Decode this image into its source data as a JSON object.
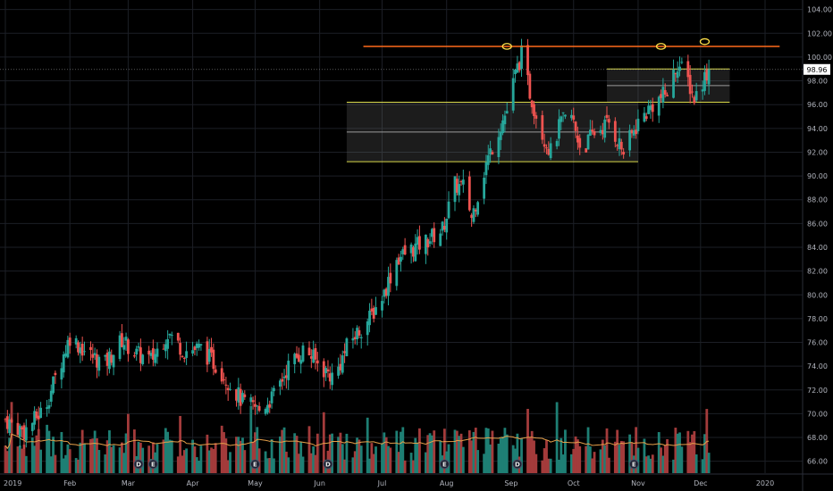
{
  "chart_data": {
    "type": "candlestick",
    "title": "",
    "xlabel": "",
    "ylabel": "",
    "ylim": [
      65,
      104.5
    ],
    "grid": true,
    "x_ticks": [
      "2019",
      "Feb",
      "Mar",
      "Apr",
      "May",
      "Jun",
      "Jul",
      "Aug",
      "Sep",
      "Oct",
      "Nov",
      "Dec",
      "2020"
    ],
    "y_ticks": [
      "66.00",
      "68.00",
      "70.00",
      "72.00",
      "74.00",
      "76.00",
      "78.00",
      "80.00",
      "82.00",
      "84.00",
      "86.00",
      "88.00",
      "90.00",
      "92.00",
      "94.00",
      "96.00",
      "98.00",
      "100.00",
      "102.00",
      "104.00"
    ],
    "last_price": "98.96",
    "close_path": [
      [
        "2019-01-01",
        69.5
      ],
      [
        "2019-01-10",
        68.5
      ],
      [
        "2019-01-20",
        70.5
      ],
      [
        "2019-01-26",
        73.5
      ],
      [
        "2019-02-01",
        76.5
      ],
      [
        "2019-02-10",
        75.0
      ],
      [
        "2019-02-18",
        74.2
      ],
      [
        "2019-02-26",
        76.2
      ],
      [
        "2019-03-05",
        75.0
      ],
      [
        "2019-03-12",
        74.5
      ],
      [
        "2019-03-20",
        76.8
      ],
      [
        "2019-03-28",
        75.3
      ],
      [
        "2019-04-05",
        75.5
      ],
      [
        "2019-04-15",
        73.5
      ],
      [
        "2019-04-25",
        71.0
      ],
      [
        "2019-05-03",
        70.3
      ],
      [
        "2019-05-10",
        71.5
      ],
      [
        "2019-05-17",
        74.0
      ],
      [
        "2019-05-25",
        75.5
      ],
      [
        "2019-06-01",
        74.0
      ],
      [
        "2019-06-08",
        73.0
      ],
      [
        "2019-06-15",
        76.0
      ],
      [
        "2019-06-25",
        78.0
      ],
      [
        "2019-07-02",
        80.2
      ],
      [
        "2019-07-08",
        83.0
      ],
      [
        "2019-07-15",
        83.8
      ],
      [
        "2019-07-22",
        84.5
      ],
      [
        "2019-07-30",
        85.5
      ],
      [
        "2019-08-05",
        89.2
      ],
      [
        "2019-08-10",
        89.0
      ],
      [
        "2019-08-13",
        86.5
      ],
      [
        "2019-08-20",
        91.0
      ],
      [
        "2019-08-25",
        93.5
      ],
      [
        "2019-08-30",
        95.5
      ],
      [
        "2019-09-03",
        98.5
      ],
      [
        "2019-09-06",
        100.2
      ],
      [
        "2019-09-10",
        97.0
      ],
      [
        "2019-09-15",
        94.0
      ],
      [
        "2019-09-20",
        92.0
      ],
      [
        "2019-09-25",
        94.5
      ],
      [
        "2019-09-30",
        95.0
      ],
      [
        "2019-10-05",
        92.0
      ],
      [
        "2019-10-10",
        93.5
      ],
      [
        "2019-10-18",
        94.5
      ],
      [
        "2019-10-25",
        92.0
      ],
      [
        "2019-11-01",
        94.5
      ],
      [
        "2019-11-08",
        96.0
      ],
      [
        "2019-11-15",
        97.0
      ],
      [
        "2019-11-20",
        99.5
      ],
      [
        "2019-11-25",
        98.0
      ],
      [
        "2019-11-28",
        96.5
      ],
      [
        "2019-12-02",
        98.0
      ],
      [
        "2019-12-05",
        98.96
      ]
    ],
    "events": [
      {
        "date": "2019-03-06",
        "label": "D"
      },
      {
        "date": "2019-03-13",
        "label": "E"
      },
      {
        "date": "2019-05-01",
        "label": "E"
      },
      {
        "date": "2019-06-05",
        "label": "D"
      },
      {
        "date": "2019-07-31",
        "label": "E"
      },
      {
        "date": "2019-09-04",
        "label": "D"
      },
      {
        "date": "2019-10-30",
        "label": "E"
      }
    ],
    "zones": [
      {
        "x": [
          "2019-06-14",
          "2019-11-01"
        ],
        "y": [
          91.2,
          96.2
        ],
        "mid": 93.7
      },
      {
        "x": [
          "2019-10-17",
          "2019-12-15"
        ],
        "y": [
          96.2,
          99.0
        ],
        "mid": 97.6
      }
    ],
    "resistance": {
      "x": [
        "2019-06-22",
        "2020-01-08"
      ],
      "y": 100.9
    },
    "highlights": [
      {
        "date": "2019-08-30",
        "y": 100.9
      },
      {
        "date": "2019-11-12",
        "y": 100.9
      },
      {
        "date": "2019-12-03",
        "y": 101.3
      }
    ]
  },
  "colors": {
    "up": "#26a69a",
    "down": "#ef5350",
    "vol_up": "#1e7f74",
    "vol_down": "#a33b3b",
    "grid": "#1c1f26",
    "zone_line": "#d8d84a",
    "resistance": "#ff6a1a",
    "highlight": "#ffe14a",
    "vol_ma": "#e6a04a"
  }
}
